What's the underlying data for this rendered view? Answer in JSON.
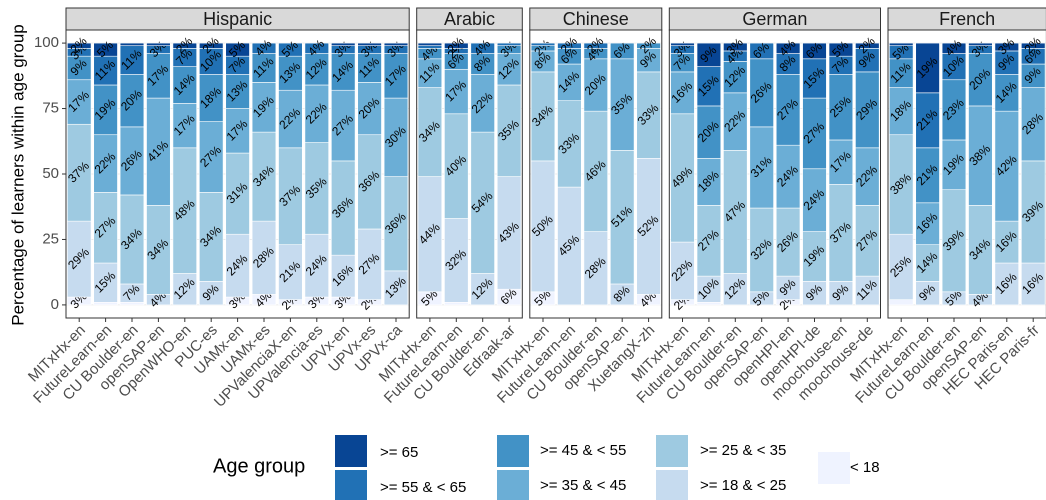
{
  "chart_data": {
    "type": "bar",
    "stacked": true,
    "ylabel": "Percentage of learners within age group",
    "ylim": [
      -5,
      105
    ],
    "yticks": [
      0,
      25,
      50,
      75,
      100
    ],
    "grid": true,
    "legend_title": "Age group",
    "facets": [
      {
        "title": "Hispanic",
        "categories": [
          "MITxHx-en",
          "FutureLearn-en",
          "CU Boulder-en",
          "openSAP-en",
          "OpenWHO-en",
          "PUC-es",
          "UAMx-en",
          "UAMx-es",
          "UPValenciaX-en",
          "UPValencia-es",
          "UPVx-en",
          "UPVx-es",
          "UPVx-ca"
        ]
      },
      {
        "title": "Arabic",
        "categories": [
          "MITxHx-en",
          "FutureLearn-en",
          "CU Boulder-en",
          "Edraak-ar"
        ]
      },
      {
        "title": "Chinese",
        "categories": [
          "MITxHx-en",
          "FutureLearn-en",
          "CU Boulder-en",
          "openSAP-en",
          "XuetangX-zh"
        ]
      },
      {
        "title": "German",
        "categories": [
          "MITxHx-en",
          "FutureLearn-en",
          "CU Boulder-en",
          "openSAP-en",
          "openHPI-en",
          "openHPI-de",
          "moochouse-en",
          "moochouse-de"
        ]
      },
      {
        "title": "French",
        "categories": [
          "MITxHx-en",
          "FutureLearn-en",
          "CU Boulder-en",
          "openSAP-en",
          "HEC Paris-en",
          "HEC Paris-fr"
        ]
      }
    ],
    "series": [
      {
        "name": "< 18",
        "color": "#eff3ff",
        "values": [
          [
            3,
            1,
            1,
            0,
            0,
            0,
            3,
            4,
            2,
            3,
            3,
            2,
            0
          ],
          [
            5,
            1,
            0,
            6
          ],
          [
            5,
            0,
            0,
            0,
            4
          ],
          [
            2,
            1,
            0,
            0,
            2,
            0,
            0,
            0
          ],
          [
            2,
            0,
            0,
            0,
            0,
            0
          ]
        ],
        "value_labels": [
          [
            "3%",
            null,
            null,
            null,
            null,
            null,
            "3%",
            "4%",
            "2%",
            "3%",
            "3%",
            "2%",
            null
          ],
          [
            "5%",
            null,
            null,
            "6%"
          ],
          [
            "5%",
            null,
            null,
            null,
            "4%"
          ],
          [
            "2%",
            null,
            null,
            null,
            "2%",
            null,
            null,
            null
          ],
          [
            null,
            null,
            null,
            null,
            null,
            null
          ]
        ]
      },
      {
        "name": ">= 18 & < 25",
        "color": "#c6dbef",
        "values": [
          [
            29,
            15,
            7,
            4,
            12,
            9,
            24,
            28,
            21,
            24,
            16,
            27,
            13
          ],
          [
            44,
            32,
            12,
            43
          ],
          [
            50,
            45,
            28,
            8,
            52
          ],
          [
            22,
            10,
            12,
            5,
            9,
            9,
            9,
            11
          ],
          [
            25,
            9,
            5,
            4,
            16,
            16
          ]
        ],
        "value_labels": [
          [
            "29%",
            "15%",
            "7%",
            "4%",
            "12%",
            "9%",
            "24%",
            "28%",
            "21%",
            "24%",
            "16%",
            "27%",
            "13%"
          ],
          [
            "44%",
            "32%",
            "12%",
            "43%"
          ],
          [
            "50%",
            "45%",
            "28%",
            "8%",
            "52%"
          ],
          [
            "22%",
            "10%",
            "12%",
            "5%",
            "9%",
            "9%",
            "9%",
            "11%"
          ],
          [
            "25%",
            "9%",
            "5%",
            "4%",
            "16%",
            "16%"
          ]
        ]
      },
      {
        "name": ">= 25 & < 35",
        "color": "#9ecae1",
        "values": [
          [
            37,
            27,
            34,
            34,
            48,
            34,
            31,
            34,
            37,
            35,
            36,
            36,
            36
          ],
          [
            34,
            40,
            54,
            35
          ],
          [
            34,
            33,
            46,
            51,
            33
          ],
          [
            49,
            27,
            47,
            32,
            26,
            19,
            37,
            27
          ],
          [
            38,
            14,
            39,
            34,
            16,
            39
          ]
        ],
        "value_labels": [
          [
            "37%",
            "27%",
            "34%",
            "34%",
            "48%",
            "34%",
            "31%",
            "34%",
            "37%",
            "35%",
            "36%",
            "36%",
            "36%"
          ],
          [
            "34%",
            "40%",
            "54%",
            "35%"
          ],
          [
            "34%",
            "33%",
            "46%",
            "51%",
            "33%"
          ],
          [
            "49%",
            "27%",
            "47%",
            "32%",
            "26%",
            "19%",
            "37%",
            "27%"
          ],
          [
            "38%",
            "14%",
            "39%",
            "34%",
            "16%",
            "39%"
          ]
        ]
      },
      {
        "name": ">= 35 & < 45",
        "color": "#6baed6",
        "values": [
          [
            17,
            22,
            26,
            41,
            17,
            27,
            17,
            19,
            22,
            22,
            27,
            20,
            30
          ],
          [
            11,
            17,
            22,
            12
          ],
          [
            8,
            14,
            20,
            35,
            9
          ],
          [
            16,
            18,
            22,
            31,
            24,
            24,
            17,
            22
          ],
          [
            18,
            16,
            19,
            38,
            42,
            28
          ]
        ],
        "value_labels": [
          [
            "17%",
            "22%",
            "26%",
            "41%",
            "17%",
            "27%",
            "17%",
            "19%",
            "22%",
            "22%",
            "27%",
            "20%",
            "30%"
          ],
          [
            "11%",
            "17%",
            "22%",
            "12%"
          ],
          [
            "8%",
            "14%",
            "20%",
            "35%",
            "9%"
          ],
          [
            "16%",
            "18%",
            "22%",
            "31%",
            "24%",
            "24%",
            "17%",
            "22%"
          ],
          [
            "18%",
            "16%",
            "19%",
            "38%",
            "42%",
            "28%"
          ]
        ]
      },
      {
        "name": ">= 45 & < 55",
        "color": "#4292c6",
        "values": [
          [
            9,
            19,
            20,
            17,
            14,
            18,
            13,
            11,
            13,
            12,
            14,
            11,
            17
          ],
          [
            4,
            6,
            8,
            3
          ],
          [
            2,
            6,
            4,
            6,
            2
          ],
          [
            7,
            20,
            12,
            26,
            27,
            27,
            25,
            29
          ],
          [
            11,
            21,
            23,
            20,
            14,
            9
          ]
        ],
        "value_labels": [
          [
            "9%",
            "19%",
            "20%",
            "17%",
            "14%",
            "18%",
            "13%",
            "11%",
            "13%",
            "12%",
            "14%",
            "11%",
            "17%"
          ],
          [
            "4%",
            "6%",
            "8%",
            "3%"
          ],
          [
            "2%",
            "6%",
            "4%",
            "6%",
            "2%"
          ],
          [
            "7%",
            "20%",
            "12%",
            "26%",
            "27%",
            "27%",
            "25%",
            "29%"
          ],
          [
            "11%",
            "21%",
            "23%",
            "20%",
            "14%",
            "9%"
          ]
        ]
      },
      {
        "name": ">= 55 & < 65",
        "color": "#2171b5",
        "values": [
          [
            3,
            11,
            11,
            3,
            7,
            10,
            7,
            4,
            5,
            4,
            3,
            3,
            3
          ],
          [
            1,
            2,
            4,
            1
          ],
          [
            1,
            2,
            2,
            0,
            0
          ],
          [
            3,
            15,
            4,
            6,
            8,
            15,
            7,
            9
          ],
          [
            5,
            21,
            10,
            3,
            9,
            6
          ]
        ],
        "value_labels": [
          [
            "3%",
            "11%",
            "11%",
            "3%",
            "7%",
            "10%",
            "7%",
            "4%",
            "5%",
            "4%",
            "3%",
            "3%",
            "3%"
          ],
          [
            null,
            "2%",
            "4%",
            null
          ],
          [
            null,
            "2%",
            "2%",
            null,
            null
          ],
          [
            "3%",
            "15%",
            "4%",
            "6%",
            "8%",
            "15%",
            "7%",
            "9%"
          ],
          [
            "5%",
            "21%",
            "10%",
            "3%",
            "9%",
            "6%"
          ]
        ]
      },
      {
        "name": ">= 65",
        "color": "#084594",
        "values": [
          [
            2,
            5,
            1,
            1,
            2,
            2,
            5,
            0,
            0,
            0,
            1,
            1,
            1
          ],
          [
            1,
            2,
            0,
            0
          ],
          [
            0,
            0,
            0,
            0,
            0
          ],
          [
            1,
            9,
            3,
            0,
            4,
            6,
            5,
            2
          ],
          [
            1,
            19,
            4,
            1,
            3,
            2
          ]
        ],
        "value_labels": [
          [
            "2%",
            "5%",
            null,
            null,
            "2%",
            "2%",
            "5%",
            null,
            null,
            null,
            null,
            null,
            null
          ],
          [
            null,
            "2%",
            null,
            null
          ],
          [
            null,
            null,
            null,
            null,
            null
          ],
          [
            null,
            "9%",
            "3%",
            null,
            "4%",
            "6%",
            "5%",
            "2%"
          ],
          [
            null,
            "19%",
            "4%",
            null,
            "3%",
            "2%"
          ]
        ]
      }
    ]
  }
}
